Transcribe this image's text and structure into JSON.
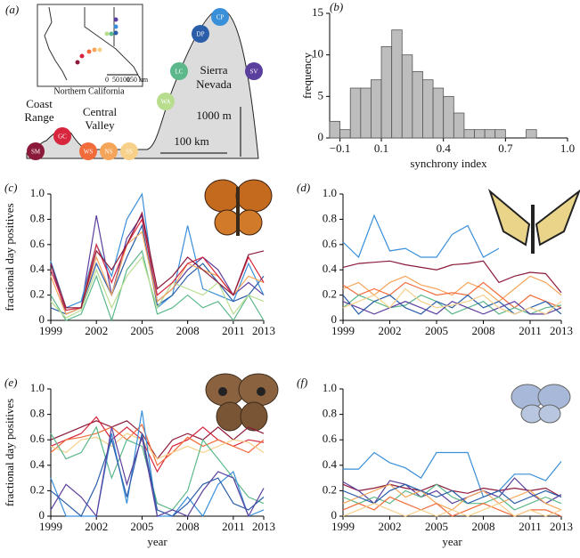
{
  "diagram": {
    "label": "(a)",
    "inset_title": "Northern California",
    "inset_scale": [
      "0",
      "50",
      "100",
      "150 km"
    ],
    "regions": [
      [
        "Coast",
        "Range"
      ],
      [
        "Central",
        "Valley"
      ],
      [
        "Sierra",
        "Nevada"
      ]
    ],
    "sites": [
      "SM",
      "GC",
      "WS",
      "NS",
      "SS",
      "WA",
      "LC",
      "DP",
      "CP",
      "SV"
    ],
    "elevation_scale": "1000 m",
    "distance_scale": "100 km"
  },
  "chart_data": [
    {
      "type": "histogram",
      "label": "(b)",
      "x_label": "synchrony index",
      "y_label": "frequency",
      "color": "#bdbdbd",
      "bins": [
        -0.15,
        -0.1,
        -0.05,
        0,
        0.05,
        0.1,
        0.15,
        0.2,
        0.25,
        0.3,
        0.35,
        0.4,
        0.45,
        0.5,
        0.55,
        0.6,
        0.65,
        0.7,
        0.75,
        0.8,
        0.85
      ],
      "counts": [
        2,
        1,
        6,
        6,
        7,
        11,
        13,
        10,
        8,
        7,
        6,
        5,
        3,
        1,
        1,
        1,
        1,
        0,
        0,
        1
      ],
      "xlim": [
        -0.15,
        1
      ],
      "xticks": [
        {
          "value": -0.1,
          "label": "−0.1"
        },
        0.1,
        0.4,
        0.7,
        {
          "value": 1,
          "label": "1.0"
        }
      ],
      "ylim": [
        0,
        15
      ],
      "yticks": [
        0,
        5,
        10,
        15
      ]
    },
    {
      "type": "line",
      "label": "(c)",
      "y_label": "fractional day positives",
      "x": [
        1999,
        2000,
        2001,
        2002,
        2003,
        2004,
        2005,
        2006,
        2007,
        2008,
        2009,
        2010,
        2011,
        2012,
        2013
      ],
      "xlim": [
        1999,
        2013
      ],
      "xticks": [
        1999,
        2002,
        2005,
        2008,
        2011,
        2013
      ],
      "ylim": [
        0,
        1
      ],
      "yticks": [
        0,
        0.2,
        0.4,
        0.6,
        0.8,
        {
          "value": 1,
          "label": "1.0"
        }
      ],
      "series": [
        {
          "color": "#5b3f9e",
          "values": [
            0.45,
            0.05,
            0.1,
            0.83,
            0.2,
            0.65,
            0.83,
            0.15,
            0.25,
            0.4,
            0.5,
            0.4,
            0.2,
            0.3,
            0.2
          ]
        },
        {
          "color": "#3a8fd9",
          "values": [
            0.47,
            0.1,
            0.15,
            0.6,
            0.35,
            0.8,
            1.0,
            0.1,
            0.2,
            0.75,
            0.25,
            0.2,
            0.15,
            0.45,
            0.2
          ]
        },
        {
          "color": "#2a5ea8",
          "values": [
            0.1,
            0.05,
            0.1,
            0.45,
            0.2,
            0.5,
            0.75,
            0.12,
            0.2,
            0.35,
            0.45,
            0.3,
            0.15,
            0.2,
            0.35
          ]
        },
        {
          "color": "#5cb88a",
          "values": [
            0.2,
            0.0,
            0.05,
            0.35,
            0.0,
            0.4,
            0.55,
            0.05,
            0.1,
            0.2,
            0.1,
            0.15,
            0.0,
            0.2,
            0.0
          ]
        },
        {
          "color": "#b9dd8f",
          "values": [
            0.15,
            0.02,
            0.08,
            0.4,
            0.1,
            0.35,
            0.5,
            0.1,
            0.3,
            0.25,
            0.2,
            0.3,
            0.05,
            0.2,
            0.15
          ]
        },
        {
          "color": "#f5a55a",
          "values": [
            0.35,
            0.05,
            0.1,
            0.5,
            0.2,
            0.6,
            0.7,
            0.15,
            0.25,
            0.45,
            0.4,
            0.35,
            0.2,
            0.35,
            0.3
          ]
        },
        {
          "color": "#d7263d",
          "values": [
            0.4,
            0.08,
            0.1,
            0.6,
            0.3,
            0.6,
            0.8,
            0.2,
            0.3,
            0.45,
            0.5,
            0.35,
            0.2,
            0.5,
            0.3
          ]
        },
        {
          "color": "#8b1a3a",
          "values": [
            0.45,
            0.1,
            0.1,
            0.55,
            0.4,
            0.6,
            0.85,
            0.25,
            0.35,
            0.5,
            0.4,
            0.3,
            0.2,
            0.52,
            0.55
          ]
        }
      ]
    },
    {
      "type": "line",
      "label": "(d)",
      "x": [
        1999,
        2000,
        2001,
        2002,
        2003,
        2004,
        2005,
        2006,
        2007,
        2008,
        2009,
        2010,
        2011,
        2012,
        2013
      ],
      "xlim": [
        1999,
        2013
      ],
      "xticks": [
        1999,
        2002,
        2005,
        2008,
        2011,
        2013
      ],
      "ylim": [
        0,
        1
      ],
      "yticks": [
        0,
        0.2,
        0.4,
        0.6,
        0.8,
        {
          "value": 1,
          "label": "1.0"
        }
      ],
      "series": [
        {
          "color": "#3a8fd9",
          "values": [
            0.62,
            0.5,
            0.83,
            0.55,
            0.57,
            0.5,
            0.5,
            0.68,
            0.75,
            0.5,
            0.57,
            null,
            null,
            null,
            null
          ]
        },
        {
          "color": "#8b1a3a",
          "values": [
            0.42,
            0.45,
            0.46,
            0.47,
            0.44,
            0.42,
            0.4,
            0.44,
            0.45,
            0.47,
            0.3,
            0.35,
            0.38,
            0.37,
            0.22
          ]
        },
        {
          "color": "#f5a55a",
          "values": [
            0.25,
            0.3,
            0.2,
            0.3,
            0.35,
            0.28,
            0.25,
            0.2,
            0.3,
            0.25,
            0.15,
            0.25,
            0.35,
            0.3,
            0.2
          ]
        },
        {
          "color": "#f26b3a",
          "values": [
            0.28,
            0.2,
            0.25,
            0.2,
            0.3,
            0.25,
            0.2,
            0.22,
            0.2,
            0.3,
            0.2,
            0.1,
            0.2,
            0.15,
            0.1
          ]
        },
        {
          "color": "#5cb88a",
          "values": [
            0.1,
            0.2,
            0.15,
            0.1,
            0.12,
            0.2,
            0.15,
            0.05,
            0.1,
            0.15,
            0.05,
            0.1,
            0.05,
            0.1,
            0.12
          ]
        },
        {
          "color": "#2a5ea8",
          "values": [
            0.2,
            0.05,
            0.15,
            0.2,
            0.1,
            0.05,
            0.15,
            0.1,
            0.2,
            0.1,
            0.15,
            0.05,
            0.1,
            0.15,
            0.05
          ]
        },
        {
          "color": "#5b3f9e",
          "values": [
            0.15,
            0.1,
            0.05,
            0.1,
            0.15,
            0.1,
            0.05,
            0.15,
            0.1,
            0.05,
            0.1,
            0.15,
            0.05,
            0.05,
            0.1
          ]
        },
        {
          "color": "#f7d08a",
          "values": [
            0.1,
            0.15,
            0.2,
            0.1,
            0.25,
            0.15,
            0.1,
            0.12,
            0.15,
            0.2,
            0.1,
            0.05,
            0.1,
            0.05,
            0.15
          ]
        }
      ]
    },
    {
      "type": "line",
      "label": "(e)",
      "y_label": "fractional day positives",
      "x_label": "year",
      "x": [
        1999,
        2000,
        2001,
        2002,
        2003,
        2004,
        2005,
        2006,
        2007,
        2008,
        2009,
        2010,
        2011,
        2012,
        2013
      ],
      "xlim": [
        1999,
        2013
      ],
      "xticks": [
        1999,
        2002,
        2005,
        2008,
        2011,
        2013
      ],
      "ylim": [
        0,
        1
      ],
      "yticks": [
        0,
        0.2,
        0.4,
        0.6,
        0.8,
        {
          "value": 1,
          "label": "1.0"
        }
      ],
      "series": [
        {
          "color": "#8b1a3a",
          "values": [
            0.6,
            0.65,
            0.7,
            0.75,
            0.7,
            0.75,
            0.65,
            0.45,
            0.6,
            0.65,
            0.6,
            0.7,
            0.6,
            0.7,
            0.65
          ]
        },
        {
          "color": "#d7263d",
          "values": [
            0.55,
            0.6,
            0.65,
            0.78,
            0.6,
            0.7,
            0.6,
            0.35,
            0.55,
            0.6,
            0.7,
            0.6,
            0.55,
            0.6,
            0.58
          ]
        },
        {
          "color": "#f26b3a",
          "values": [
            0.5,
            0.6,
            0.62,
            0.65,
            0.7,
            0.6,
            0.72,
            0.4,
            0.5,
            0.62,
            0.55,
            0.6,
            0.55,
            0.5,
            0.6
          ]
        },
        {
          "color": "#f7d08a",
          "values": [
            0.55,
            0.5,
            0.6,
            0.62,
            0.55,
            0.65,
            0.6,
            0.45,
            0.5,
            0.55,
            0.5,
            0.55,
            0.6,
            0.58,
            0.5
          ]
        },
        {
          "color": "#5cb88a",
          "values": [
            0.65,
            0.45,
            0.5,
            0.7,
            0.3,
            0.6,
            0.55,
            0.1,
            0.05,
            0.2,
            0.6,
            0.45,
            0.3,
            0.15,
            0.1
          ]
        },
        {
          "color": "#3a8fd9",
          "values": [
            0.3,
            0.0,
            0.0,
            0.0,
            0.65,
            0.1,
            0.83,
            0.0,
            0.0,
            0.15,
            0.0,
            0.25,
            0.35,
            0.0,
            0.05
          ]
        },
        {
          "color": "#2a5ea8",
          "values": [
            0.2,
            0.1,
            0.0,
            0.25,
            0.6,
            0.15,
            0.65,
            0.05,
            0.0,
            0.1,
            0.25,
            0.3,
            0.1,
            0.05,
            0.15
          ]
        },
        {
          "color": "#5b3f9e",
          "values": [
            0.05,
            0.25,
            0.15,
            0.0,
            0.7,
            0.25,
            0.62,
            0.0,
            0.05,
            0.0,
            0.2,
            0.35,
            0.3,
            0.0,
            0.22
          ]
        }
      ]
    },
    {
      "type": "line",
      "label": "(f)",
      "x_label": "year",
      "x": [
        1999,
        2000,
        2001,
        2002,
        2003,
        2004,
        2005,
        2006,
        2007,
        2008,
        2009,
        2010,
        2011,
        2012,
        2013
      ],
      "xlim": [
        1999,
        2013
      ],
      "xticks": [
        1999,
        2002,
        2005,
        2008,
        2011,
        2013
      ],
      "ylim": [
        0,
        1
      ],
      "yticks": [
        0,
        0.2,
        0.4,
        0.6,
        0.8,
        {
          "value": 1,
          "label": "1.0"
        }
      ],
      "series": [
        {
          "color": "#3a8fd9",
          "values": [
            0.37,
            0.37,
            0.5,
            0.42,
            0.38,
            0.3,
            0.5,
            0.5,
            0.5,
            0.15,
            0.2,
            0.33,
            0.33,
            0.28,
            0.43
          ]
        },
        {
          "color": "#8b1a3a",
          "values": [
            0.25,
            0.2,
            0.22,
            0.25,
            0.22,
            0.2,
            0.25,
            0.2,
            0.18,
            0.22,
            0.2,
            0.22,
            0.2,
            0.22,
            0.15
          ]
        },
        {
          "color": "#5b3f9e",
          "values": [
            0.27,
            0.2,
            0.1,
            0.28,
            0.25,
            0.15,
            0.2,
            0.1,
            0.15,
            0.2,
            0.15,
            0.3,
            0.18,
            0.1,
            0.17
          ]
        },
        {
          "color": "#5cb88a",
          "values": [
            0.15,
            0.1,
            0.15,
            0.1,
            0.2,
            0.15,
            0.25,
            0.15,
            0.1,
            0.1,
            0.15,
            0.05,
            0.1,
            0.15,
            0.1
          ]
        },
        {
          "color": "#f5a55a",
          "values": [
            0.1,
            0.15,
            0.2,
            0.25,
            0.15,
            0.2,
            0.1,
            0.05,
            0.15,
            0.2,
            0.1,
            0.15,
            0.2,
            0.1,
            0.05
          ]
        },
        {
          "color": "#f26b3a",
          "values": [
            0.05,
            0.1,
            0.05,
            0.15,
            0.1,
            0.05,
            0.1,
            0.0,
            0.05,
            0.1,
            0.05,
            0.0,
            0.05,
            0.05,
            0.0
          ]
        },
        {
          "color": "#2a5ea8",
          "values": [
            0.2,
            0.15,
            0.1,
            0.2,
            0.25,
            0.2,
            0.15,
            0.2,
            0.1,
            0.15,
            0.2,
            0.1,
            0.15,
            0.2,
            0.15
          ]
        },
        {
          "color": "#f7d08a",
          "values": [
            0.0,
            0.05,
            0.1,
            0.05,
            0.0,
            0.05,
            0.0,
            0.05,
            0.0,
            0.05,
            0.1,
            0.0,
            0.05,
            0.0,
            0.05
          ]
        }
      ]
    }
  ]
}
